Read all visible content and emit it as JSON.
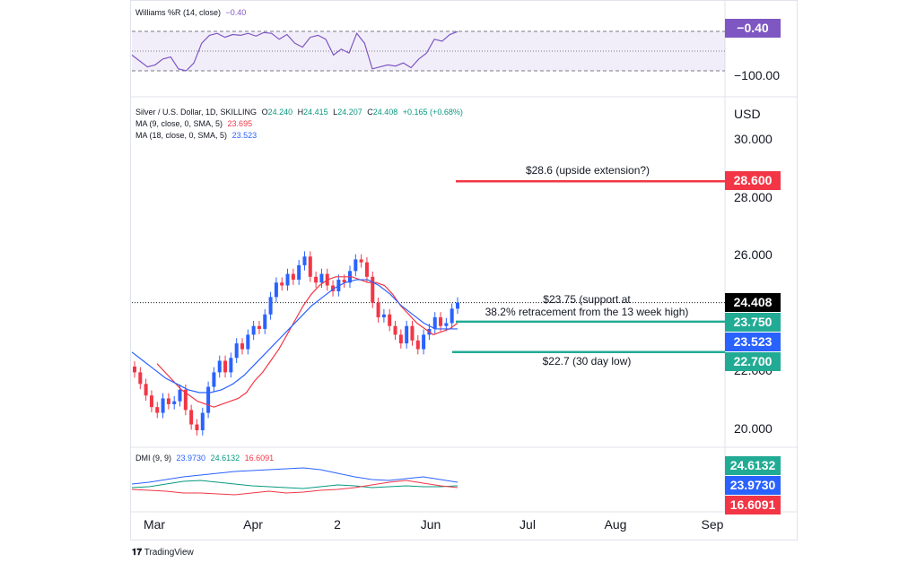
{
  "williams": {
    "title": "Williams %R (14, close)",
    "value": "−0.40",
    "tick_min": "−100.00"
  },
  "price": {
    "title": "Silver / U.S. Dollar, 1D, SKILLING",
    "o_label": "O",
    "open": "24.240",
    "h_label": "H",
    "high": "24.415",
    "l_label": "L",
    "low": "24.207",
    "c_label": "C",
    "close": "24.408",
    "change": "+0.165 (+0.68%)",
    "currency": "USD",
    "ticks": [
      "30.000",
      "28.000",
      "26.000",
      "22.000",
      "20.000"
    ]
  },
  "ma9": {
    "title": "MA (9, close, 0, SMA, 5)",
    "value": "23.695"
  },
  "ma18": {
    "title": "MA (18, close, 0, SMA, 5)",
    "value": "23.523"
  },
  "dmi": {
    "title": "DMI (9, 9)",
    "plus_di": "23.9730",
    "adx": "24.6132",
    "minus_di": "16.6091"
  },
  "badges": {
    "b28600": "28.600",
    "last": "24.408",
    "b23750": "23.750",
    "ma18": "23.523",
    "b22700": "22.700"
  },
  "xaxis": {
    "labels": [
      "Mar",
      "Apr",
      "2",
      "Jun",
      "Jul",
      "Aug",
      "Sep"
    ]
  },
  "annotations": {
    "a28600": "$28.6 (upside extension?)",
    "support_line1": "$23.75 (support at",
    "support_line2": "38.2% retracement from the 13 week high)",
    "a22700": "$22.7 (30 day low)"
  },
  "brand": "TradingView",
  "colors": {
    "up": "#2962ff",
    "down": "#f23645",
    "ma9": "#f23645",
    "ma18": "#2962ff",
    "williams": "#7e57c2",
    "support": "#22ab94",
    "target": "#f23645"
  },
  "chart_data": {
    "type": "line",
    "title": "Silver / U.S. Dollar, 1D, SKILLING",
    "ylabel": "USD",
    "ylim": [
      19.5,
      31
    ],
    "horizontal_levels": [
      {
        "value": 28.6,
        "label": "$28.6 (upside extension?)"
      },
      {
        "value": 23.75,
        "label": "$23.75 (support at 38.2% retracement from the 13 week high)"
      },
      {
        "value": 22.7,
        "label": "$22.7 (30 day low)"
      }
    ],
    "last_price": 24.408,
    "series": [
      {
        "name": "Silver / U.S. Dollar",
        "values": [
          22.0,
          21.6,
          21.2,
          20.8,
          20.6,
          21.1,
          20.9,
          21.0,
          21.4,
          20.7,
          20.2,
          20.0,
          20.6,
          21.5,
          22.0,
          22.4,
          22.0,
          22.5,
          23.0,
          22.8,
          23.3,
          23.6,
          23.5,
          24.0,
          24.6,
          25.1,
          25.0,
          25.4,
          25.2,
          25.7,
          26.0,
          25.3,
          25.1,
          25.4,
          25.0,
          24.8,
          25.2,
          25.1,
          25.5,
          25.9,
          25.8,
          25.3,
          24.4,
          23.9,
          24.0,
          23.6,
          23.3,
          23.0,
          23.6,
          23.1,
          22.8,
          23.3,
          23.5,
          23.9,
          23.6,
          23.7,
          24.2,
          24.41
        ]
      },
      {
        "name": "MA (9, close, 0, SMA, 5)",
        "values": [
          22.3,
          22.0,
          21.7,
          21.4,
          21.2,
          21.0,
          20.9,
          20.8,
          20.9,
          21.0,
          21.1,
          21.3,
          21.7,
          22.0,
          22.4,
          22.8,
          23.3,
          23.8,
          24.3,
          24.7,
          25.0,
          25.2,
          25.3,
          25.3,
          25.3,
          25.2,
          25.1,
          25.1,
          25.0,
          24.7,
          24.3,
          24.0,
          23.7,
          23.5,
          23.3,
          23.4,
          23.5,
          23.7
        ]
      },
      {
        "name": "MA (18, close, 0, SMA, 5)",
        "values": [
          22.7,
          22.4,
          22.1,
          21.8,
          21.6,
          21.4,
          21.3,
          21.3,
          21.4,
          21.6,
          21.9,
          22.3,
          22.7,
          23.1,
          23.5,
          23.9,
          24.3,
          24.6,
          24.9,
          25.1,
          25.2,
          25.2,
          25.0,
          24.7,
          24.3,
          24.0,
          23.7,
          23.5,
          23.5,
          23.5
        ]
      }
    ],
    "williams_r": {
      "name": "Williams %R (14, close)",
      "ylim": [
        -100,
        0
      ],
      "last": -0.4,
      "values": [
        -60,
        -75,
        -90,
        -85,
        -70,
        -65,
        -95,
        -100,
        -80,
        -30,
        -10,
        -5,
        -15,
        -8,
        -10,
        -5,
        -12,
        -3,
        -5,
        -20,
        -8,
        -30,
        -40,
        -15,
        -10,
        -20,
        -60,
        -45,
        -55,
        -5,
        -30,
        -95,
        -90,
        -85,
        -88,
        -80,
        -92,
        -70,
        -55,
        -20,
        -25,
        -8,
        -0.4
      ]
    },
    "dmi": {
      "plus_di": 23.973,
      "adx": 24.6132,
      "minus_di": 16.6091
    }
  }
}
